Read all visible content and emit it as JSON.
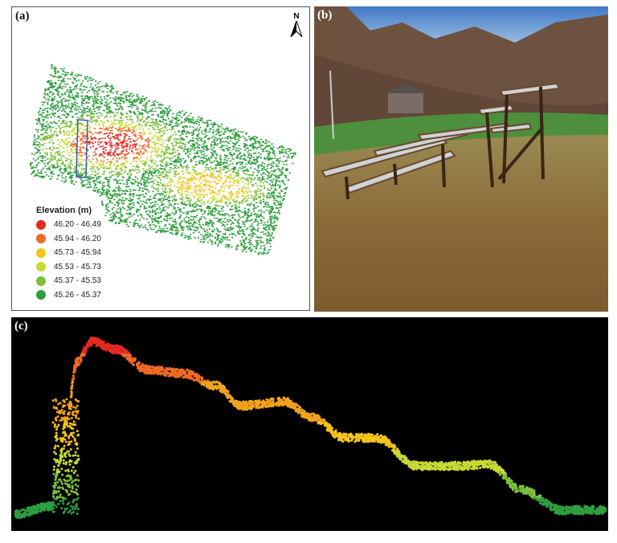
{
  "panel_a": {
    "label": "(a)",
    "north": "N",
    "legend": {
      "title": "Elevation (m)",
      "items": [
        {
          "range": "46.20 - 46.49",
          "color": "#e52a22"
        },
        {
          "range": "45.94 - 46.20",
          "color": "#ee6a25"
        },
        {
          "range": "45.73 - 45.94",
          "color": "#f6c41a"
        },
        {
          "range": "45.53 - 45.73",
          "color": "#c7d934"
        },
        {
          "range": "45.37 - 45.53",
          "color": "#7dbf3c"
        },
        {
          "range": "45.26 - 45.37",
          "color": "#2f9e3f"
        }
      ]
    }
  },
  "panel_b": {
    "label": "(b)"
  },
  "panel_c": {
    "label": "(c)"
  }
}
